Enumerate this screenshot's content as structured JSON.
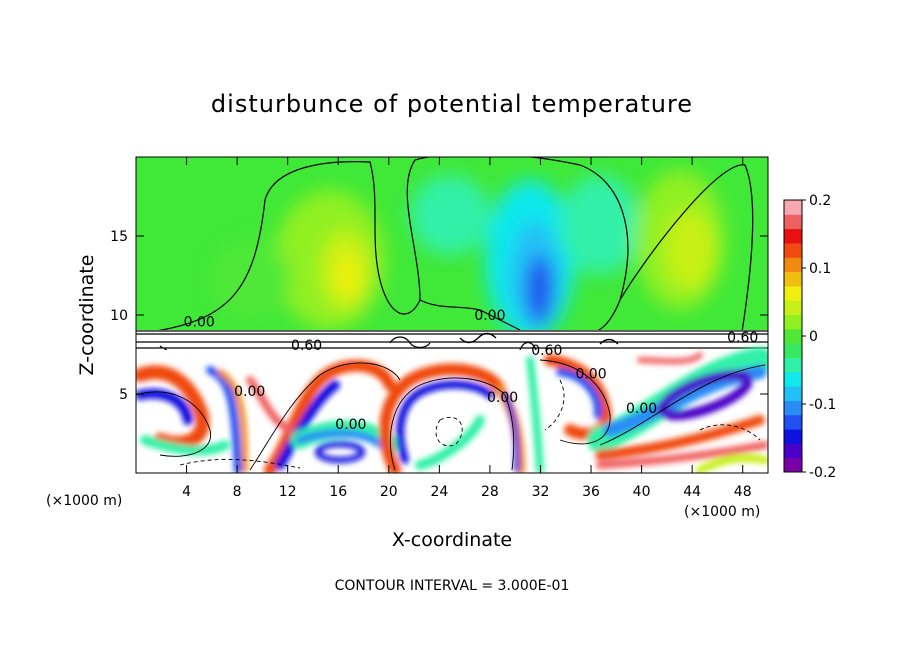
{
  "chart_data": {
    "type": "heatmap",
    "title": "disturbunce of potential temperature",
    "xlabel": "X-coordinate",
    "ylabel": "Z-coordinate",
    "x_unit_label_left": "(×1000 m)",
    "x_unit_label_right": "(×1000 m)",
    "footer": "CONTOUR INTERVAL = 3.000E-01",
    "xlim": [
      0,
      50
    ],
    "ylim": [
      0,
      20
    ],
    "x_ticks": [
      "4",
      "8",
      "12",
      "16",
      "20",
      "24",
      "28",
      "32",
      "36",
      "40",
      "44",
      "48"
    ],
    "y_ticks": [
      "5",
      "10",
      "15"
    ],
    "colorbar": {
      "range": [
        -0.2,
        0.2
      ],
      "tick_labels": [
        "0.2",
        "0.1",
        "0",
        "-0.1",
        "-0.2"
      ],
      "tick_values": [
        0.2,
        0.1,
        0,
        -0.1,
        -0.2
      ],
      "colors": [
        "#7a00a8",
        "#4a00c8",
        "#1010e0",
        "#2050f0",
        "#2a8cf5",
        "#22c0f5",
        "#10e8ec",
        "#30f0a8",
        "#38e860",
        "#50e838",
        "#90f020",
        "#c8f018",
        "#f0f010",
        "#f0c010",
        "#f08a10",
        "#f04a10",
        "#e81010",
        "#f06060",
        "#f8a8b0"
      ]
    },
    "contour_labels": [
      {
        "text": "0.00",
        "x": 5,
        "z": 9.6
      },
      {
        "text": "0.60",
        "x": 13.5,
        "z": 8.1
      },
      {
        "text": "0.00",
        "x": 9,
        "z": 5.2
      },
      {
        "text": "0.00",
        "x": 17,
        "z": 3.1
      },
      {
        "text": "0.00",
        "x": 28,
        "z": 10
      },
      {
        "text": "0.00",
        "x": 29,
        "z": 4.8
      },
      {
        "text": "0.60",
        "x": 32.5,
        "z": 7.8
      },
      {
        "text": "0.00",
        "x": 36,
        "z": 6.3
      },
      {
        "text": "0.00",
        "x": 40,
        "z": 4.1
      },
      {
        "text": "0.60",
        "x": 48,
        "z": 8.6
      }
    ]
  }
}
